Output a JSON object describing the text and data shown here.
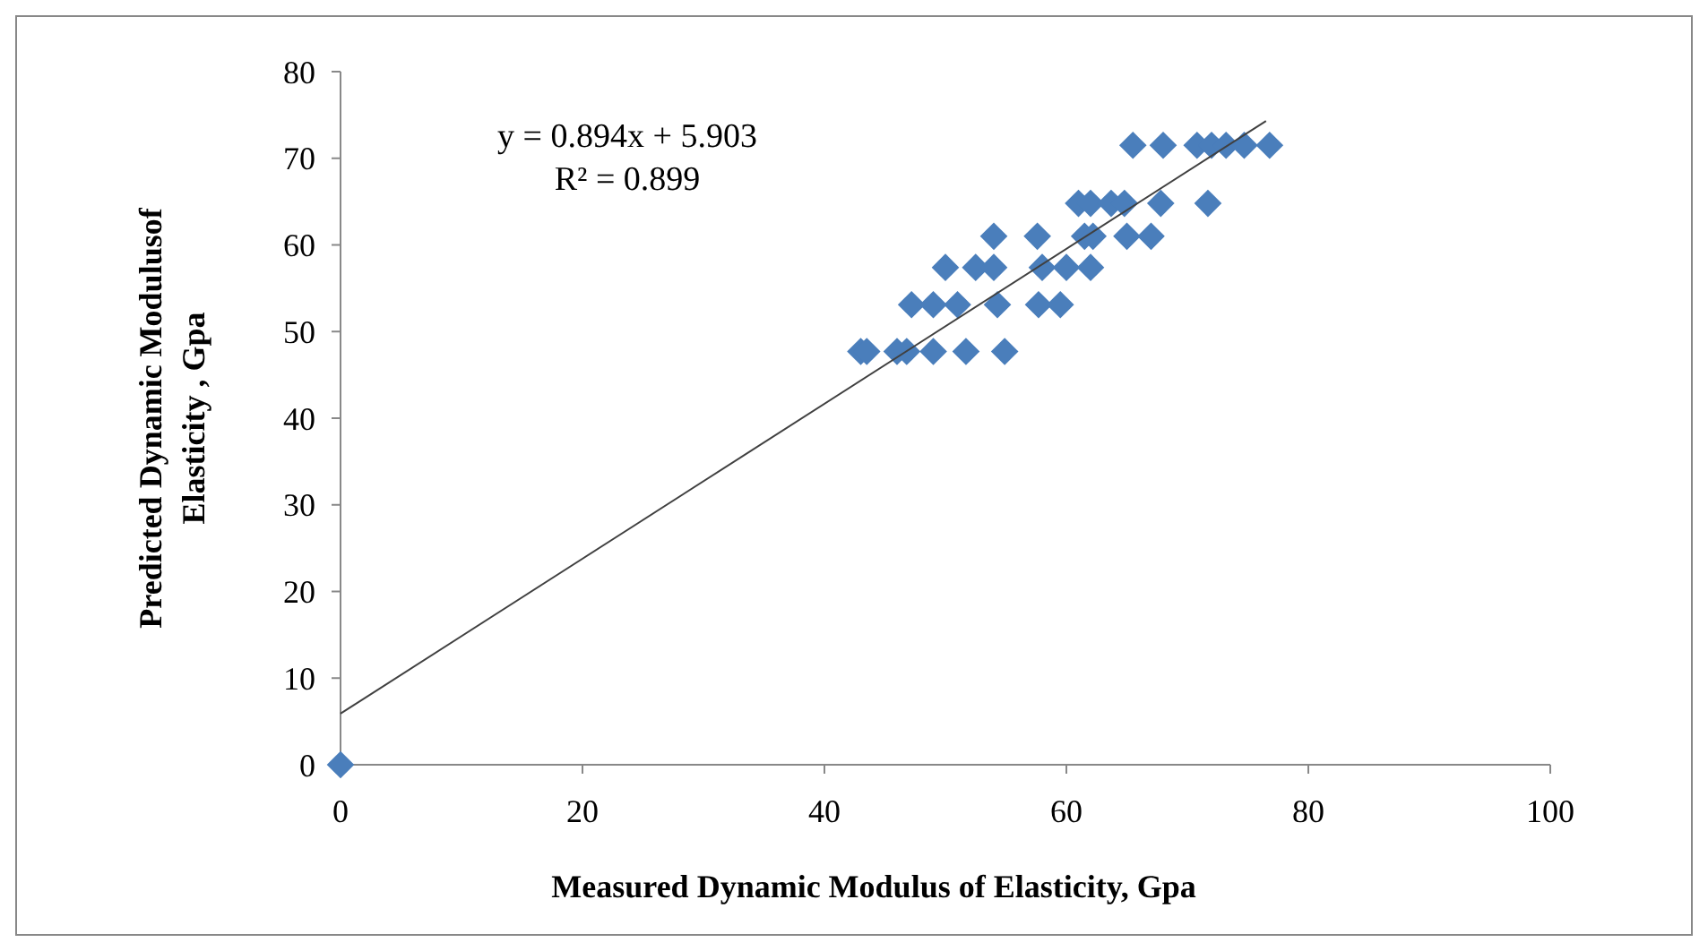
{
  "chart_data": {
    "type": "scatter",
    "xlabel": "Measured Dynamic Modulus of Elasticity, Gpa",
    "ylabel": "Predicted Dynamic Modulusof\nElasticity , Gpa",
    "annotations": [
      "y = 0.894x + 5.903",
      "R² = 0.899"
    ],
    "xlim": [
      0,
      100
    ],
    "xticks": [
      0,
      20,
      40,
      60,
      80,
      100
    ],
    "ylim": [
      0,
      80
    ],
    "yticks": [
      0,
      10,
      20,
      30,
      40,
      50,
      60,
      70,
      80
    ],
    "grid": false,
    "series": [
      {
        "marker": "diamond",
        "color": "#4a7ebb",
        "x": [
          0,
          65.5,
          68,
          70.8,
          72,
          73.2,
          74.7,
          76.8,
          61,
          62,
          63.7,
          64.8,
          67.8,
          71.7,
          54,
          57.6,
          61.5,
          62.2,
          65,
          67,
          50,
          52.5,
          54,
          58,
          60,
          62,
          47.2,
          49,
          51,
          54.3,
          57.7,
          59.5,
          43,
          43.5,
          46,
          46.8,
          49,
          51.7,
          54.9
        ],
        "values": [
          0,
          71.5,
          71.5,
          71.5,
          71.5,
          71.5,
          71.5,
          71.5,
          64.8,
          64.8,
          64.8,
          64.8,
          64.8,
          64.8,
          61,
          61,
          61,
          61,
          61,
          61,
          57.4,
          57.4,
          57.4,
          57.4,
          57.4,
          57.4,
          53.1,
          53.1,
          53.1,
          53.1,
          53.1,
          53.1,
          47.7,
          47.7,
          47.7,
          47.7,
          47.7,
          47.7,
          47.7
        ]
      },
      {
        "type": "line",
        "color": "#404040",
        "x": [
          0,
          76.5
        ],
        "values": [
          5.9,
          74.3
        ]
      }
    ]
  }
}
